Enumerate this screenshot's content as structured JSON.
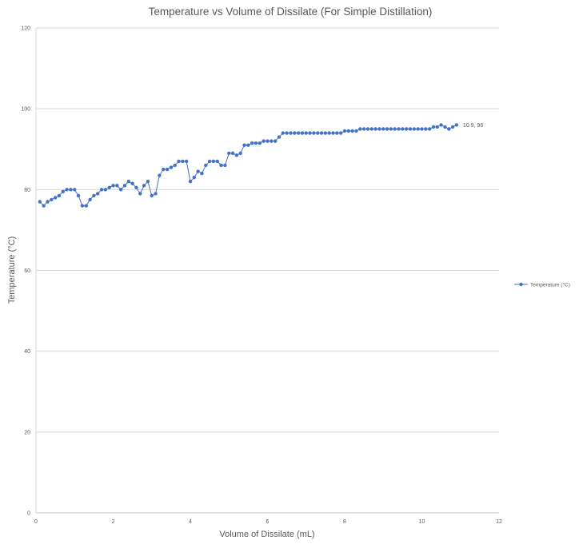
{
  "chart_data": {
    "type": "line",
    "title": "Temperature vs Volume of Dissilate (For Simple Distillation)",
    "xlabel": "Volume of Dissilate (mL)",
    "ylabel": "Temperature (°C)",
    "xlim": [
      0,
      12
    ],
    "ylim": [
      0,
      120
    ],
    "x_ticks": [
      "0",
      "2",
      "4",
      "6",
      "8",
      "10",
      "12"
    ],
    "y_ticks": [
      "0",
      "20",
      "40",
      "60",
      "80",
      "100",
      "120"
    ],
    "grid": "horizontal",
    "legend_position": "right",
    "colors": {
      "series": "#4472C4",
      "grid": "#d9d9d9",
      "text": "#595959"
    },
    "series": [
      {
        "name": "Temperature (°C)",
        "x": [
          0.1,
          0.2,
          0.3,
          0.4,
          0.5,
          0.6,
          0.7,
          0.8,
          0.9,
          1.0,
          1.1,
          1.2,
          1.3,
          1.4,
          1.5,
          1.6,
          1.7,
          1.8,
          1.9,
          2.0,
          2.1,
          2.2,
          2.3,
          2.4,
          2.5,
          2.6,
          2.7,
          2.8,
          2.9,
          3.0,
          3.1,
          3.2,
          3.3,
          3.4,
          3.5,
          3.6,
          3.7,
          3.8,
          3.9,
          4.0,
          4.1,
          4.2,
          4.3,
          4.4,
          4.5,
          4.6,
          4.7,
          4.8,
          4.9,
          5.0,
          5.1,
          5.2,
          5.3,
          5.4,
          5.5,
          5.6,
          5.7,
          5.8,
          5.9,
          6.0,
          6.1,
          6.2,
          6.3,
          6.4,
          6.5,
          6.6,
          6.7,
          6.8,
          6.9,
          7.0,
          7.1,
          7.2,
          7.3,
          7.4,
          7.5,
          7.6,
          7.7,
          7.8,
          7.9,
          8.0,
          8.1,
          8.2,
          8.3,
          8.4,
          8.5,
          8.6,
          8.7,
          8.8,
          8.9,
          9.0,
          9.1,
          9.2,
          9.3,
          9.4,
          9.5,
          9.6,
          9.7,
          9.8,
          9.9,
          10.0,
          10.1,
          10.2,
          10.3,
          10.4,
          10.5,
          10.6,
          10.7,
          10.8,
          10.9
        ],
        "y": [
          77,
          76,
          77,
          77.5,
          78,
          78.5,
          79.5,
          80,
          80,
          80,
          78.5,
          76,
          76,
          77.5,
          78.5,
          79,
          80,
          80,
          80.5,
          81,
          81,
          80,
          81,
          82,
          81.5,
          80.5,
          79,
          81,
          82,
          78.5,
          79,
          83.5,
          85,
          85,
          85.5,
          86,
          87,
          87,
          87,
          82,
          83,
          84.5,
          84,
          86,
          87,
          87,
          87,
          86,
          86,
          89,
          89,
          88.5,
          89,
          91,
          91,
          91.5,
          91.5,
          91.5,
          92,
          92,
          92,
          92,
          93,
          94,
          94,
          94,
          94,
          94,
          94,
          94,
          94,
          94,
          94,
          94,
          94,
          94,
          94,
          94,
          94,
          94.5,
          94.5,
          94.5,
          94.5,
          95,
          95,
          95,
          95,
          95,
          95,
          95,
          95,
          95,
          95,
          95,
          95,
          95,
          95,
          95,
          95,
          95,
          95,
          95,
          95.5,
          95.5,
          96,
          95.5,
          95,
          95.5,
          96
        ]
      }
    ],
    "annotations": [
      {
        "text": "10.9, 96",
        "x": 10.9,
        "y": 96
      }
    ]
  }
}
